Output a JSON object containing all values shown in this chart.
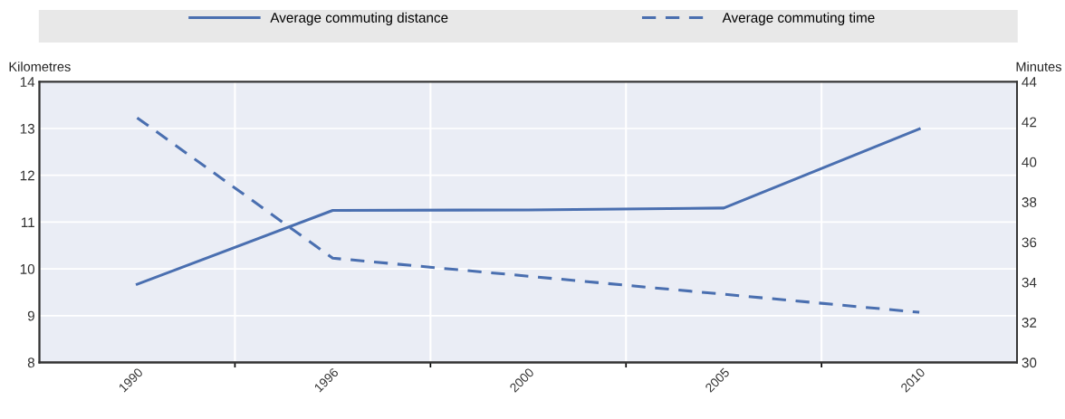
{
  "chart_data": {
    "type": "line",
    "ylabel": "Kilometres",
    "y2label": "Minutes",
    "categories": [
      "1990",
      "1996",
      "2000",
      "2005",
      "2010"
    ],
    "series": [
      {
        "name": "Average commuting distance",
        "color": "#4a6fb0",
        "values": [
          9.67,
          11.25,
          11.26,
          11.3,
          12.99
        ],
        "line_style": "solid"
      },
      {
        "name": "Average commuting time",
        "color": "#4a6fb0",
        "values": [
          42.2,
          35.2,
          34.3,
          33.4,
          32.5
        ],
        "line_style": "dashed",
        "axis": "y2"
      }
    ],
    "ylim": [
      8,
      14
    ],
    "yticks": [
      8,
      9,
      10,
      11,
      12,
      13,
      14
    ],
    "y2lim": [
      30,
      44
    ],
    "y2ticks": [
      30,
      32,
      34,
      36,
      38,
      40,
      42,
      44
    ],
    "grid": true,
    "legend": "top",
    "marker": "none"
  }
}
